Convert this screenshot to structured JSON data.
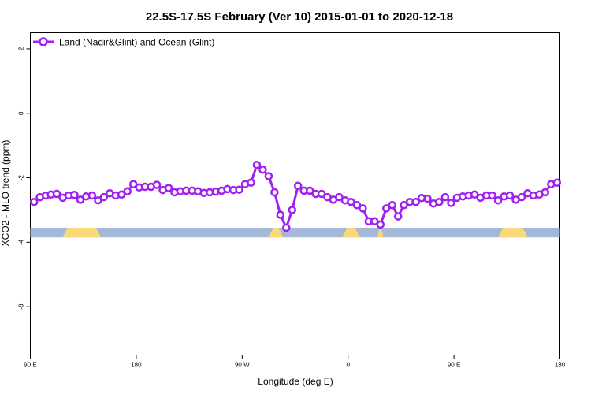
{
  "chart_data": {
    "type": "line",
    "title": "22.5S-17.5S February (Ver 10)   2015-01-01 to 2020-12-18",
    "xlabel": "Longitude (deg E)",
    "ylabel": "XCO2 - MLO trend (ppm)",
    "xlim": [
      90,
      450
    ],
    "ylim": [
      -7.5,
      2.5
    ],
    "x_ticks": [
      {
        "value": 90,
        "label": "90 E"
      },
      {
        "value": 162,
        "label": "180"
      },
      {
        "value": 234,
        "label": "90 W"
      },
      {
        "value": 306,
        "label": "0"
      },
      {
        "value": 378,
        "label": "90 E"
      },
      {
        "value": 450,
        "label": "180"
      }
    ],
    "y_ticks": [
      {
        "value": 2,
        "label": "2"
      },
      {
        "value": 0,
        "label": "0"
      },
      {
        "value": -2,
        "label": "-2"
      },
      {
        "value": -4,
        "label": "-4"
      },
      {
        "value": -6,
        "label": "-6"
      }
    ],
    "grid": false,
    "legend_position": "top-left",
    "series": [
      {
        "name": "Land (Nadir&Glint) and Ocean (Glint)",
        "color": "#a020f0",
        "marker": "open-circle",
        "x": [
          92.5,
          96.5,
          100.5,
          104,
          108,
          112,
          116,
          120,
          124,
          128,
          132,
          136,
          140,
          144,
          148,
          152,
          156,
          160,
          164,
          168,
          172,
          176,
          180,
          184,
          188,
          192,
          196,
          200,
          204,
          208,
          212,
          216,
          220,
          224,
          228,
          232,
          236,
          240,
          244,
          248,
          252,
          256,
          260,
          264,
          268,
          272,
          276,
          280,
          284,
          288,
          292,
          296,
          300,
          304,
          308,
          312,
          316,
          320,
          324,
          328,
          332,
          336,
          340,
          344,
          348,
          352,
          356,
          360,
          364,
          368,
          372,
          376,
          380,
          384,
          388,
          392,
          396,
          400,
          404,
          408,
          412,
          416,
          420,
          424,
          428,
          432,
          436,
          440,
          444,
          448
        ],
        "values": [
          -2.75,
          -2.6,
          -2.55,
          -2.52,
          -2.5,
          -2.62,
          -2.55,
          -2.53,
          -2.68,
          -2.58,
          -2.55,
          -2.7,
          -2.6,
          -2.48,
          -2.55,
          -2.52,
          -2.42,
          -2.2,
          -2.3,
          -2.28,
          -2.28,
          -2.22,
          -2.38,
          -2.32,
          -2.45,
          -2.42,
          -2.4,
          -2.4,
          -2.42,
          -2.47,
          -2.45,
          -2.43,
          -2.4,
          -2.35,
          -2.38,
          -2.37,
          -2.2,
          -2.15,
          -1.6,
          -1.75,
          -1.95,
          -2.45,
          -3.15,
          -3.55,
          -3.0,
          -2.25,
          -2.4,
          -2.4,
          -2.5,
          -2.5,
          -2.6,
          -2.68,
          -2.6,
          -2.7,
          -2.75,
          -2.85,
          -2.95,
          -3.35,
          -3.35,
          -3.45,
          -2.95,
          -2.85,
          -3.2,
          -2.85,
          -2.75,
          -2.75,
          -2.63,
          -2.65,
          -2.8,
          -2.75,
          -2.6,
          -2.78,
          -2.62,
          -2.58,
          -2.55,
          -2.52,
          -2.62,
          -2.55,
          -2.55,
          -2.7,
          -2.58,
          -2.55,
          -2.68,
          -2.6,
          -2.48,
          -2.55,
          -2.52,
          -2.45,
          -2.2,
          -2.15
        ]
      }
    ],
    "landmask": {
      "ocean_color": "#a4b8d8",
      "land_color": "#f9d979",
      "y_range": [
        -3.85,
        -3.55
      ],
      "land_regions": [
        [
          112,
          138
        ],
        [
          252,
          262
        ],
        [
          302,
          314
        ],
        [
          326,
          330
        ],
        [
          408,
          428
        ]
      ]
    }
  }
}
